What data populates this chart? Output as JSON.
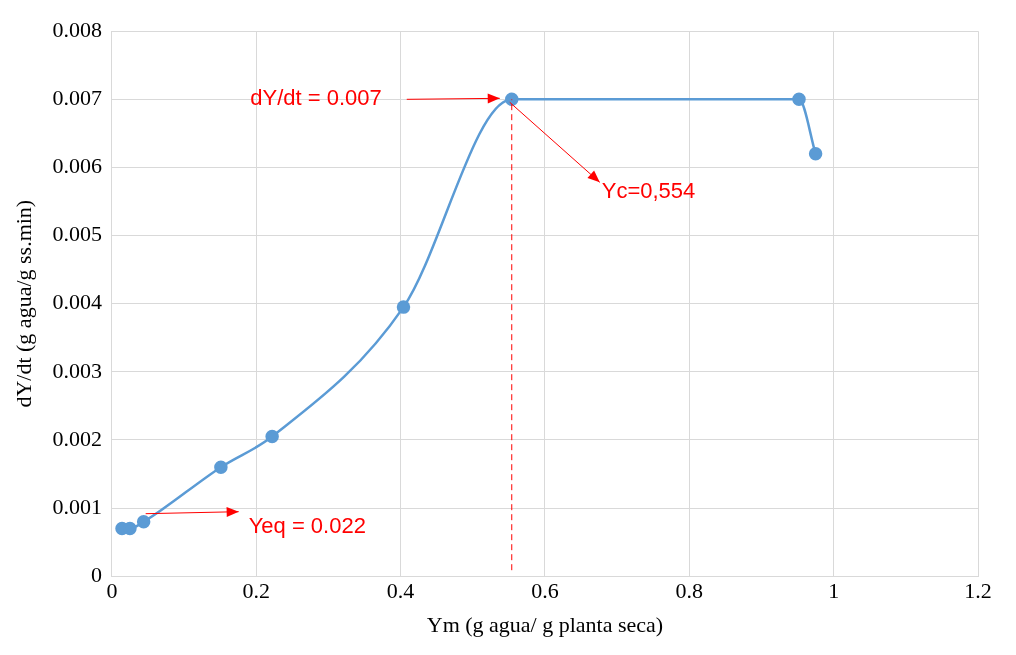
{
  "chart_data": {
    "type": "line",
    "xlabel": "Ym (g agua/ g planta seca)",
    "ylabel": "dY/dt (g agua/g ss.min)",
    "x": [
      0.014,
      0.025,
      0.044,
      0.151,
      0.222,
      0.404,
      0.554,
      0.952,
      0.975
    ],
    "series": [
      {
        "color": "#5b9bd5",
        "values": [
          0.0007,
          0.0007,
          0.0008,
          0.0016,
          0.00205,
          0.00395,
          0.007,
          0.007,
          0.0062
        ]
      }
    ],
    "xlim": [
      0,
      1.2
    ],
    "xticks": [
      0,
      0.2,
      0.4,
      0.6,
      0.8,
      1,
      1.2
    ],
    "ylim": [
      0,
      0.008
    ],
    "yticks": [
      0,
      0.001,
      0.002,
      0.003,
      0.004,
      0.005,
      0.006,
      0.007,
      0.008
    ],
    "grid": true,
    "legend": false,
    "marker": "circle",
    "line_style": "solid",
    "ref_lines": [
      {
        "axis": "x",
        "value": 0.554,
        "color": "#ff0000",
        "line_style": "dashed"
      }
    ],
    "annotations": [
      "dY/dt = 0.007",
      "Yc=0,554",
      "Yeq = 0.022"
    ]
  }
}
